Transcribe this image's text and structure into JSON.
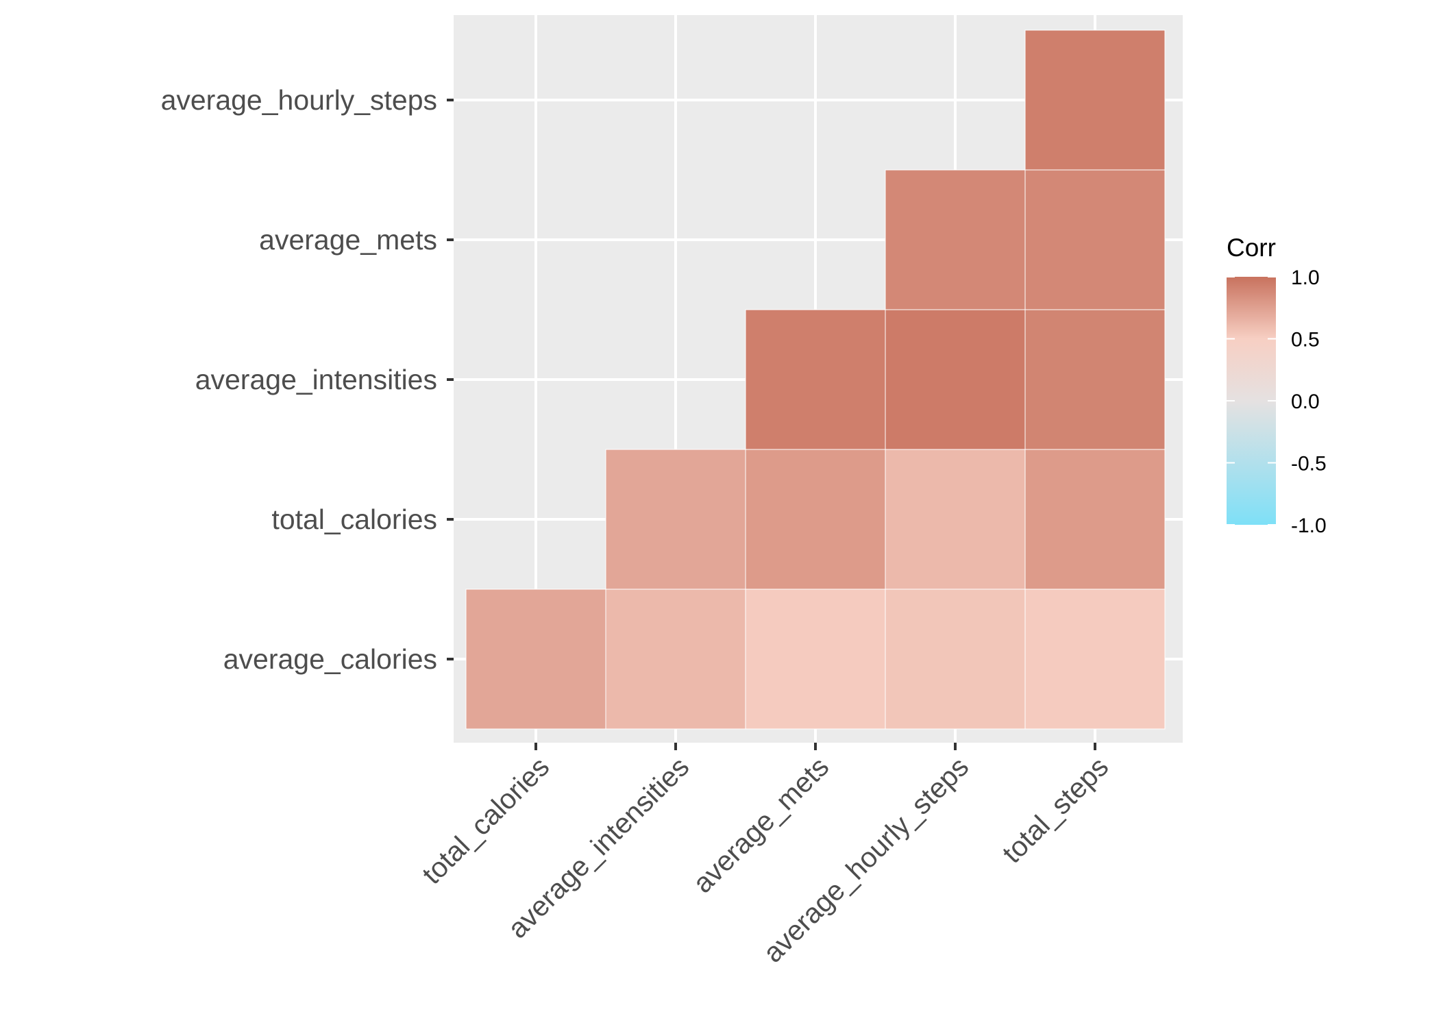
{
  "chart_data": {
    "type": "heatmap",
    "title": "",
    "xlabel": "",
    "ylabel": "",
    "x_categories": [
      "total_calories",
      "average_intensities",
      "average_mets",
      "average_hourly_steps",
      "total_steps"
    ],
    "y_categories": [
      "average_calories",
      "total_calories",
      "average_intensities",
      "average_mets",
      "average_hourly_steps"
    ],
    "cells": [
      {
        "x": "total_calories",
        "y": "average_calories",
        "value": 0.72
      },
      {
        "x": "average_intensities",
        "y": "average_calories",
        "value": 0.62
      },
      {
        "x": "average_mets",
        "y": "average_calories",
        "value": 0.52
      },
      {
        "x": "average_hourly_steps",
        "y": "average_calories",
        "value": 0.55
      },
      {
        "x": "total_steps",
        "y": "average_calories",
        "value": 0.52
      },
      {
        "x": "average_intensities",
        "y": "total_calories",
        "value": 0.72
      },
      {
        "x": "average_mets",
        "y": "total_calories",
        "value": 0.78
      },
      {
        "x": "average_hourly_steps",
        "y": "total_calories",
        "value": 0.62
      },
      {
        "x": "total_steps",
        "y": "total_calories",
        "value": 0.78
      },
      {
        "x": "average_mets",
        "y": "average_intensities",
        "value": 0.93
      },
      {
        "x": "average_hourly_steps",
        "y": "average_intensities",
        "value": 0.95
      },
      {
        "x": "total_steps",
        "y": "average_intensities",
        "value": 0.9
      },
      {
        "x": "average_hourly_steps",
        "y": "average_mets",
        "value": 0.88
      },
      {
        "x": "total_steps",
        "y": "average_mets",
        "value": 0.88
      },
      {
        "x": "total_steps",
        "y": "average_hourly_steps",
        "value": 0.93
      }
    ],
    "legend": {
      "title": "Corr",
      "position": "right",
      "ticks": [
        1.0,
        0.5,
        0.0,
        -0.5,
        -1.0
      ],
      "tick_labels": [
        "1.0",
        "0.5",
        "0.0",
        "-0.5",
        "-1.0"
      ],
      "range": [
        -1,
        1
      ]
    },
    "colors": {
      "high": "#c8725e",
      "mid": "#f7cfc3",
      "zero": "#e5e1e1",
      "low": "#7ee0f7",
      "panel_background": "#ebebeb",
      "grid": "#ffffff"
    },
    "grid": true
  }
}
